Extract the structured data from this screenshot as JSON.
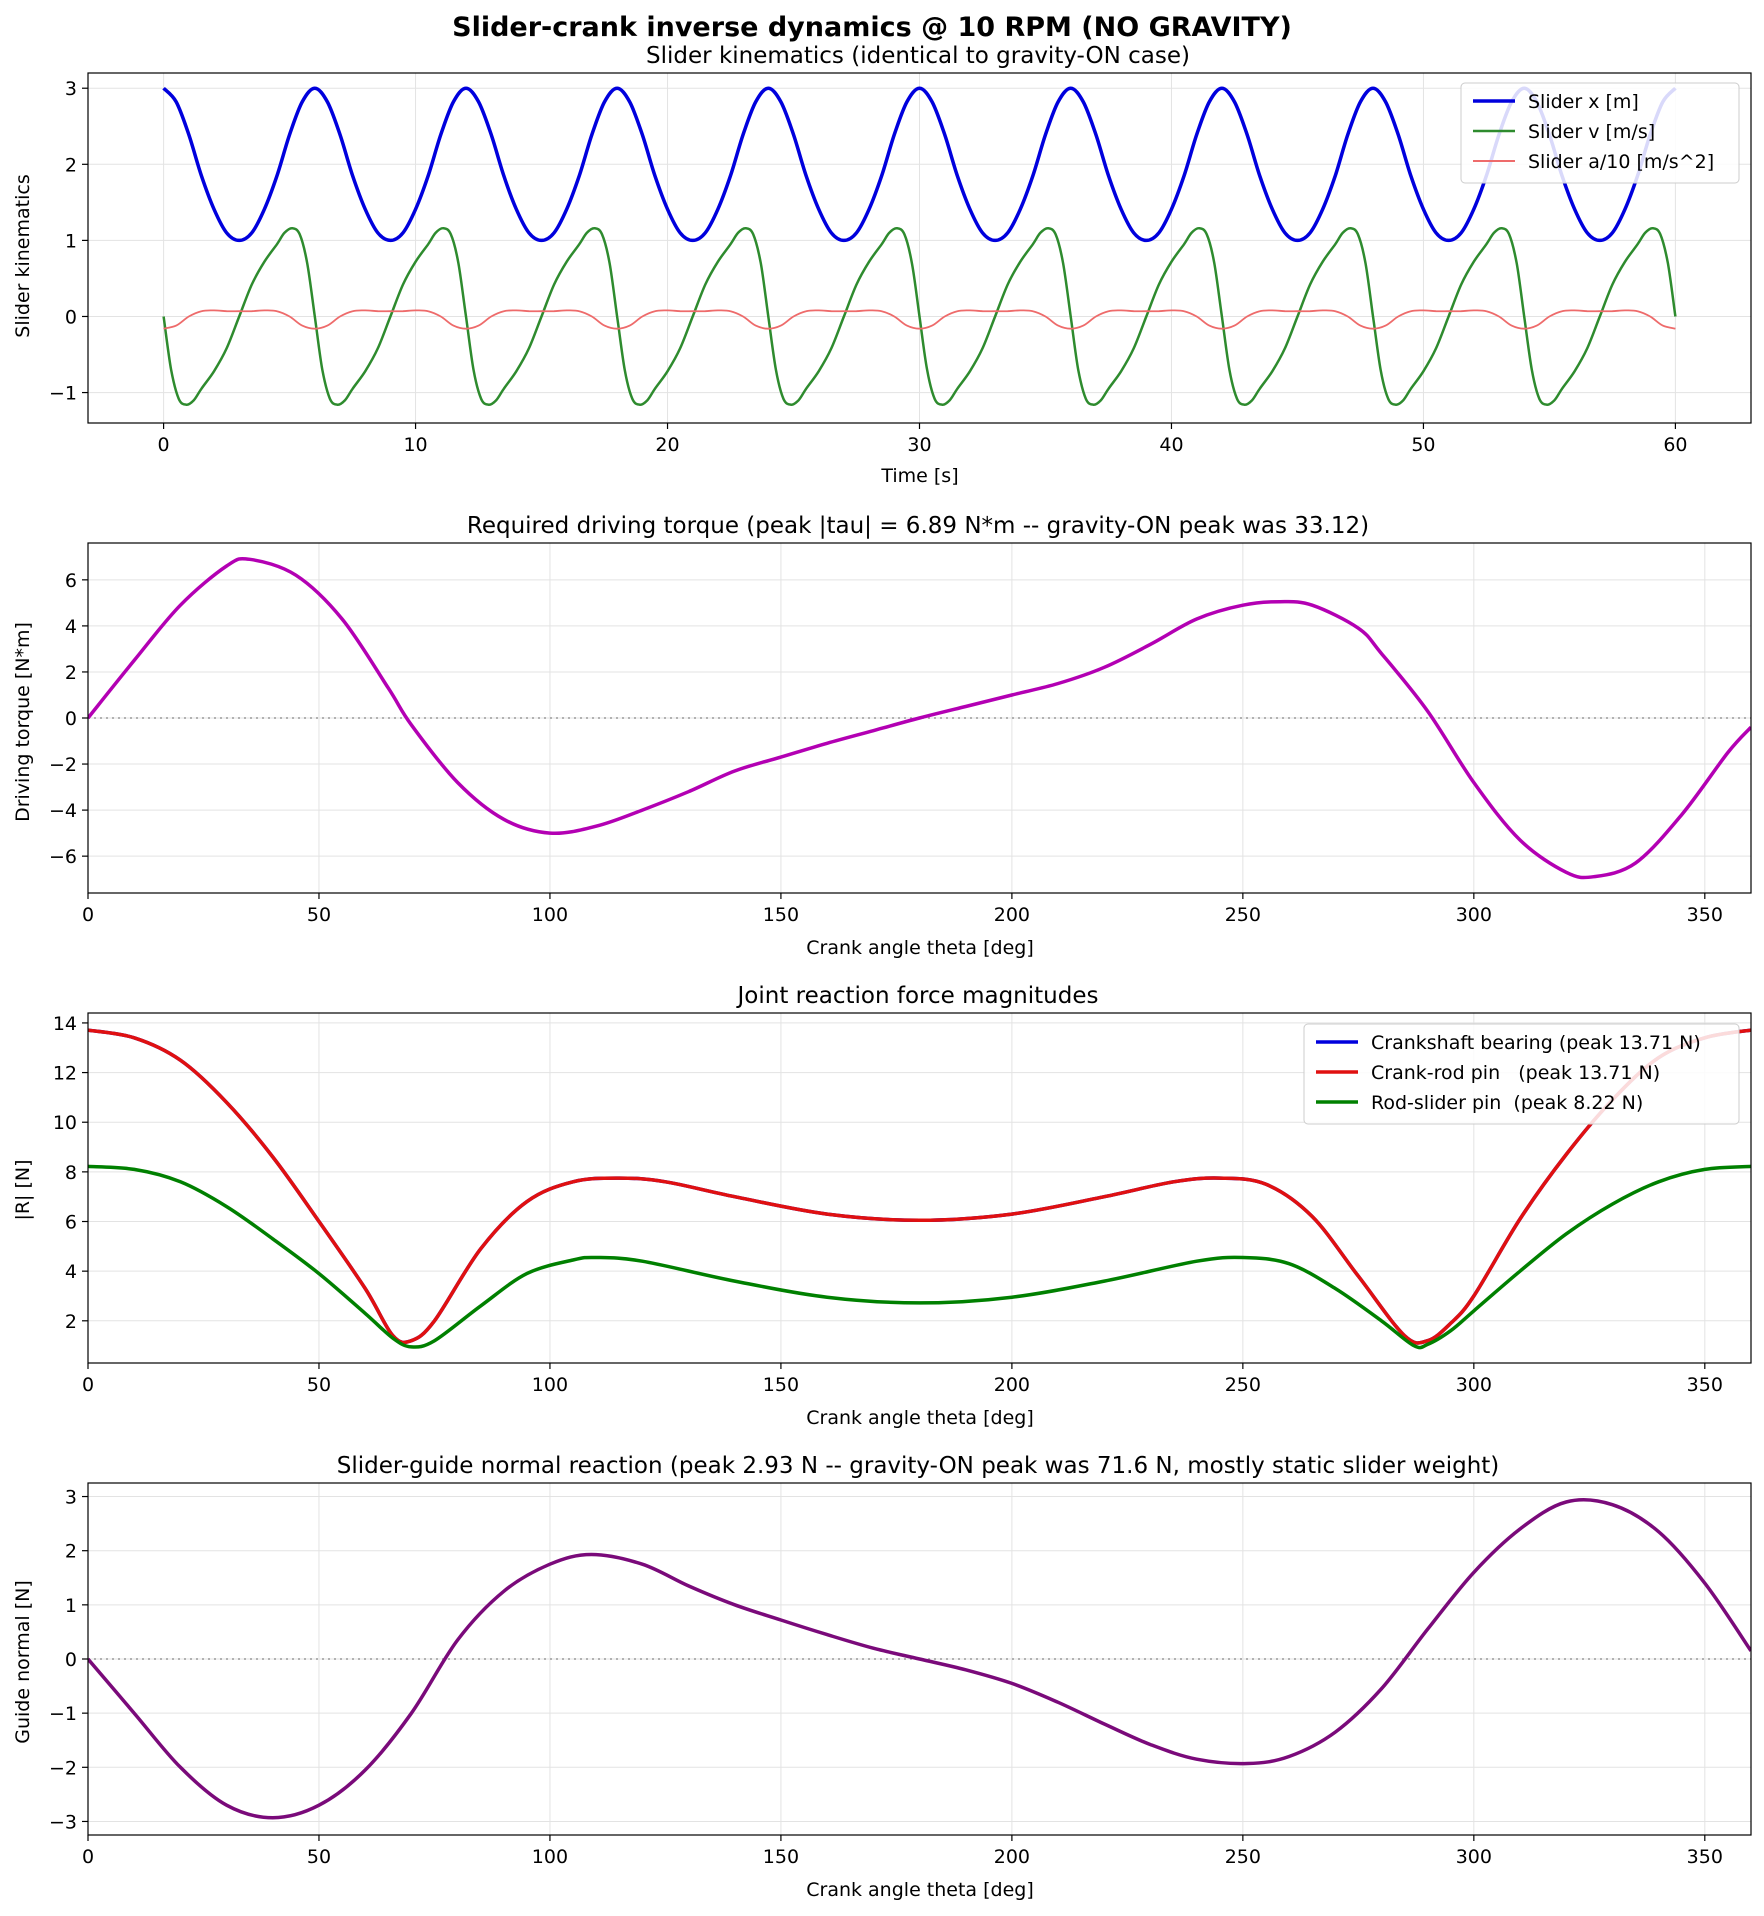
{
  "suptitle": "Slider-crank inverse dynamics @ 10 RPM (NO GRAVITY)",
  "chart_data": [
    {
      "type": "line",
      "title": "Slider kinematics (identical to gravity-ON case)",
      "xlabel": "Time [s]",
      "ylabel": "Slider kinematics",
      "xlim": [
        -3,
        63
      ],
      "ylim": [
        -1.4,
        3.2
      ],
      "xticks": [
        0,
        10,
        20,
        30,
        40,
        50,
        60
      ],
      "yticks": [
        -1,
        0,
        1,
        2,
        3
      ],
      "grid": true,
      "legend": "top-right",
      "series": [
        {
          "name": "Slider x [m]",
          "color": "#0000dd",
          "x_range": [
            0,
            60
          ],
          "period_s": 6,
          "points": [
            [
              0,
              3.0
            ],
            [
              0.5,
              2.82
            ],
            [
              1.0,
              2.39
            ],
            [
              1.5,
              1.85
            ],
            [
              2.0,
              1.41
            ],
            [
              2.5,
              1.1
            ],
            [
              3.0,
              1.0
            ],
            [
              3.5,
              1.1
            ],
            [
              4.0,
              1.41
            ],
            [
              4.5,
              1.85
            ],
            [
              5.0,
              2.39
            ],
            [
              5.5,
              2.82
            ],
            [
              6.0,
              3.0
            ]
          ]
        },
        {
          "name": "Slider v [m/s]",
          "color": "#2e8b2e",
          "x_range": [
            0,
            60
          ],
          "period_s": 6,
          "points": [
            [
              0,
              0
            ],
            [
              0.3,
              -0.7
            ],
            [
              0.6,
              -1.08
            ],
            [
              0.9,
              -1.16
            ],
            [
              1.2,
              -1.1
            ],
            [
              1.5,
              -0.95
            ],
            [
              2.0,
              -0.72
            ],
            [
              2.5,
              -0.42
            ],
            [
              3.0,
              0
            ],
            [
              3.5,
              0.42
            ],
            [
              4.0,
              0.72
            ],
            [
              4.5,
              0.95
            ],
            [
              4.8,
              1.1
            ],
            [
              5.1,
              1.16
            ],
            [
              5.4,
              1.08
            ],
            [
              5.7,
              0.7
            ],
            [
              6.0,
              0
            ]
          ]
        },
        {
          "name": "Slider a/10 [m/s^2]",
          "color": "#ee6b6b",
          "x_range": [
            0,
            60
          ],
          "period_s": 6,
          "points": [
            [
              0,
              -0.16
            ],
            [
              0.5,
              -0.12
            ],
            [
              1.0,
              0.0
            ],
            [
              1.5,
              0.07
            ],
            [
              2.0,
              0.08
            ],
            [
              2.5,
              0.07
            ],
            [
              3.0,
              0.07
            ],
            [
              3.5,
              0.07
            ],
            [
              4.0,
              0.08
            ],
            [
              4.5,
              0.07
            ],
            [
              5.0,
              0.0
            ],
            [
              5.5,
              -0.12
            ],
            [
              6.0,
              -0.16
            ]
          ]
        }
      ]
    },
    {
      "type": "line",
      "title": "Required driving torque (peak |tau| = 6.89 N*m   -- gravity-ON peak was 33.12)",
      "xlabel": "Crank angle theta [deg]",
      "ylabel": "Driving torque [N*m]",
      "xlim": [
        0,
        360
      ],
      "ylim": [
        -7.6,
        7.6
      ],
      "xticks": [
        0,
        50,
        100,
        150,
        200,
        250,
        300,
        350
      ],
      "yticks": [
        -6,
        -4,
        -2,
        0,
        2,
        4,
        6
      ],
      "grid": true,
      "zero_line": true,
      "series": [
        {
          "name": "Driving torque",
          "color": "#b300b3",
          "points": [
            [
              0,
              0
            ],
            [
              10,
              2.5
            ],
            [
              20,
              4.9
            ],
            [
              30,
              6.6
            ],
            [
              35,
              6.89
            ],
            [
              45,
              6.2
            ],
            [
              55,
              4.3
            ],
            [
              65,
              1.3
            ],
            [
              70,
              -0.3
            ],
            [
              80,
              -2.8
            ],
            [
              90,
              -4.4
            ],
            [
              100,
              -5.0
            ],
            [
              110,
              -4.7
            ],
            [
              120,
              -4.0
            ],
            [
              130,
              -3.2
            ],
            [
              140,
              -2.3
            ],
            [
              150,
              -1.7
            ],
            [
              160,
              -1.1
            ],
            [
              170,
              -0.55
            ],
            [
              180,
              0
            ],
            [
              190,
              0.5
            ],
            [
              200,
              1.0
            ],
            [
              210,
              1.5
            ],
            [
              220,
              2.2
            ],
            [
              230,
              3.2
            ],
            [
              240,
              4.3
            ],
            [
              250,
              4.9
            ],
            [
              258,
              5.05
            ],
            [
              265,
              4.9
            ],
            [
              275,
              3.9
            ],
            [
              280,
              2.8
            ],
            [
              290,
              0.3
            ],
            [
              300,
              -2.8
            ],
            [
              310,
              -5.3
            ],
            [
              320,
              -6.7
            ],
            [
              326,
              -6.89
            ],
            [
              335,
              -6.3
            ],
            [
              345,
              -4.2
            ],
            [
              355,
              -1.5
            ],
            [
              360,
              -0.4
            ]
          ]
        }
      ]
    },
    {
      "type": "line",
      "title": "Joint reaction force magnitudes",
      "xlabel": "Crank angle theta [deg]",
      "ylabel": "|R| [N]",
      "xlim": [
        0,
        360
      ],
      "ylim": [
        0.3,
        14.4
      ],
      "xticks": [
        0,
        50,
        100,
        150,
        200,
        250,
        300,
        350
      ],
      "yticks": [
        2,
        4,
        6,
        8,
        10,
        12,
        14
      ],
      "grid": true,
      "legend": "top-right",
      "series": [
        {
          "name": "Crankshaft bearing (peak 13.71 N)",
          "color": "#0000dd",
          "points": [
            [
              0,
              13.71
            ],
            [
              10,
              13.4
            ],
            [
              20,
              12.5
            ],
            [
              30,
              10.8
            ],
            [
              40,
              8.6
            ],
            [
              50,
              6.0
            ],
            [
              60,
              3.3
            ],
            [
              66,
              1.4
            ],
            [
              70,
              1.2
            ],
            [
              75,
              2.0
            ],
            [
              85,
              4.9
            ],
            [
              95,
              6.8
            ],
            [
              105,
              7.6
            ],
            [
              115,
              7.75
            ],
            [
              125,
              7.6
            ],
            [
              140,
              7.0
            ],
            [
              160,
              6.3
            ],
            [
              180,
              6.05
            ],
            [
              200,
              6.3
            ],
            [
              220,
              7.0
            ],
            [
              235,
              7.6
            ],
            [
              245,
              7.75
            ],
            [
              255,
              7.5
            ],
            [
              265,
              6.2
            ],
            [
              275,
              3.8
            ],
            [
              285,
              1.4
            ],
            [
              290,
              1.2
            ],
            [
              295,
              1.9
            ],
            [
              300,
              3.0
            ],
            [
              310,
              6.1
            ],
            [
              320,
              8.7
            ],
            [
              330,
              10.9
            ],
            [
              340,
              12.6
            ],
            [
              350,
              13.4
            ],
            [
              360,
              13.71
            ]
          ]
        },
        {
          "name": "Crank-rod pin   (peak 13.71 N)",
          "color": "#e01010",
          "points": [
            [
              0,
              13.71
            ],
            [
              10,
              13.4
            ],
            [
              20,
              12.5
            ],
            [
              30,
              10.8
            ],
            [
              40,
              8.6
            ],
            [
              50,
              6.0
            ],
            [
              60,
              3.3
            ],
            [
              66,
              1.4
            ],
            [
              70,
              1.2
            ],
            [
              75,
              2.0
            ],
            [
              85,
              4.9
            ],
            [
              95,
              6.8
            ],
            [
              105,
              7.6
            ],
            [
              115,
              7.75
            ],
            [
              125,
              7.6
            ],
            [
              140,
              7.0
            ],
            [
              160,
              6.3
            ],
            [
              180,
              6.05
            ],
            [
              200,
              6.3
            ],
            [
              220,
              7.0
            ],
            [
              235,
              7.6
            ],
            [
              245,
              7.75
            ],
            [
              255,
              7.5
            ],
            [
              265,
              6.2
            ],
            [
              275,
              3.8
            ],
            [
              285,
              1.4
            ],
            [
              290,
              1.2
            ],
            [
              295,
              1.9
            ],
            [
              300,
              3.0
            ],
            [
              310,
              6.1
            ],
            [
              320,
              8.7
            ],
            [
              330,
              10.9
            ],
            [
              340,
              12.6
            ],
            [
              350,
              13.4
            ],
            [
              360,
              13.71
            ]
          ]
        },
        {
          "name": "Rod-slider pin  (peak 8.22 N)",
          "color": "#008000",
          "points": [
            [
              0,
              8.22
            ],
            [
              10,
              8.1
            ],
            [
              20,
              7.6
            ],
            [
              30,
              6.6
            ],
            [
              40,
              5.3
            ],
            [
              50,
              3.9
            ],
            [
              60,
              2.3
            ],
            [
              66,
              1.3
            ],
            [
              70,
              0.95
            ],
            [
              75,
              1.2
            ],
            [
              85,
              2.6
            ],
            [
              95,
              3.9
            ],
            [
              105,
              4.45
            ],
            [
              110,
              4.55
            ],
            [
              120,
              4.4
            ],
            [
              140,
              3.6
            ],
            [
              160,
              2.95
            ],
            [
              180,
              2.72
            ],
            [
              200,
              2.95
            ],
            [
              220,
              3.6
            ],
            [
              240,
              4.4
            ],
            [
              250,
              4.55
            ],
            [
              260,
              4.3
            ],
            [
              270,
              3.3
            ],
            [
              280,
              2.0
            ],
            [
              287,
              1.0
            ],
            [
              290,
              1.05
            ],
            [
              295,
              1.6
            ],
            [
              300,
              2.4
            ],
            [
              310,
              4.0
            ],
            [
              320,
              5.5
            ],
            [
              330,
              6.7
            ],
            [
              340,
              7.6
            ],
            [
              350,
              8.1
            ],
            [
              360,
              8.22
            ]
          ]
        }
      ]
    },
    {
      "type": "line",
      "title": "Slider-guide normal reaction (peak 2.93 N   -- gravity-ON peak was 71.6 N, mostly static slider weight)",
      "xlabel": "Crank angle theta [deg]",
      "ylabel": "Guide normal [N]",
      "xlim": [
        0,
        360
      ],
      "ylim": [
        -3.25,
        3.25
      ],
      "xticks": [
        0,
        50,
        100,
        150,
        200,
        250,
        300,
        350
      ],
      "yticks": [
        -3,
        -2,
        -1,
        0,
        1,
        2,
        3
      ],
      "grid": true,
      "zero_line": true,
      "series": [
        {
          "name": "Guide normal",
          "color": "#7a0a7a",
          "points": [
            [
              0,
              0
            ],
            [
              10,
              -1.0
            ],
            [
              20,
              -2.0
            ],
            [
              30,
              -2.7
            ],
            [
              40,
              -2.93
            ],
            [
              50,
              -2.7
            ],
            [
              60,
              -2.05
            ],
            [
              70,
              -1.0
            ],
            [
              80,
              0.35
            ],
            [
              90,
              1.25
            ],
            [
              100,
              1.75
            ],
            [
              109,
              1.93
            ],
            [
              120,
              1.75
            ],
            [
              130,
              1.35
            ],
            [
              140,
              1.0
            ],
            [
              150,
              0.72
            ],
            [
              160,
              0.45
            ],
            [
              170,
              0.2
            ],
            [
              180,
              0
            ],
            [
              190,
              -0.2
            ],
            [
              200,
              -0.45
            ],
            [
              210,
              -0.8
            ],
            [
              220,
              -1.2
            ],
            [
              230,
              -1.58
            ],
            [
              240,
              -1.85
            ],
            [
              251,
              -1.93
            ],
            [
              260,
              -1.8
            ],
            [
              270,
              -1.35
            ],
            [
              280,
              -0.55
            ],
            [
              290,
              0.55
            ],
            [
              300,
              1.6
            ],
            [
              310,
              2.4
            ],
            [
              320,
              2.9
            ],
            [
              330,
              2.85
            ],
            [
              340,
              2.35
            ],
            [
              350,
              1.4
            ],
            [
              360,
              0.15
            ]
          ]
        }
      ]
    }
  ]
}
